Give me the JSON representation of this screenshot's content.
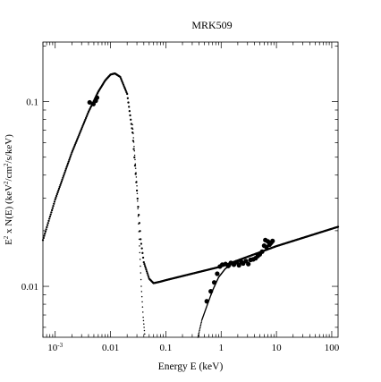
{
  "chart_data": {
    "type": "scatter",
    "title": "MRK509",
    "xlabel": "Energy E (keV)",
    "ylabel_parts": {
      "e": "E",
      "two": "2",
      "rest": " x N(E) (keV",
      "two_b": "2",
      "rest2": "/cm",
      "two_c": "2",
      "rest3": "/s/keV)"
    },
    "x_scale": "log",
    "y_scale": "log",
    "xlim": [
      0.0006,
      130
    ],
    "ylim": [
      0.0053,
      0.21
    ],
    "x_ticks": [
      {
        "value": 0.001,
        "base": "10",
        "exp": "-3"
      },
      {
        "value": 0.01,
        "label": "0.01"
      },
      {
        "value": 0.1,
        "label": "0.1"
      },
      {
        "value": 1,
        "label": "1"
      },
      {
        "value": 10,
        "label": "10"
      },
      {
        "value": 100,
        "label": "100"
      }
    ],
    "y_ticks": [
      {
        "value": 0.01,
        "label": "0.01"
      },
      {
        "value": 0.1,
        "label": "0.1"
      }
    ],
    "grid": false,
    "series": [
      {
        "style": "line",
        "points": [
          [
            0.0006,
            0.0178
          ],
          [
            0.001,
            0.0295
          ],
          [
            0.002,
            0.053
          ],
          [
            0.004,
            0.088
          ],
          [
            0.006,
            0.113
          ],
          [
            0.008,
            0.13
          ],
          [
            0.01,
            0.14
          ],
          [
            0.012,
            0.142
          ],
          [
            0.015,
            0.136
          ],
          [
            0.02,
            0.11
          ],
          [
            0.025,
            0.068
          ],
          [
            0.03,
            0.033
          ],
          [
            0.035,
            0.018
          ],
          [
            0.04,
            0.0135
          ],
          [
            0.05,
            0.011
          ],
          [
            0.06,
            0.0104
          ],
          [
            0.08,
            0.0106
          ],
          [
            0.1,
            0.0108
          ],
          [
            1,
            0.0128
          ],
          [
            10,
            0.0165
          ],
          [
            130,
            0.021
          ]
        ]
      },
      {
        "style": "dotted",
        "points": [
          [
            0.025,
            0.075
          ],
          [
            0.03,
            0.035
          ],
          [
            0.033,
            0.018
          ],
          [
            0.036,
            0.01
          ],
          [
            0.039,
            0.0068
          ],
          [
            0.042,
            0.0053
          ]
        ]
      },
      {
        "style": "dotted",
        "points": [
          [
            0.38,
            0.0053
          ],
          [
            0.45,
            0.0066
          ],
          [
            0.55,
            0.0078
          ],
          [
            0.7,
            0.0095
          ],
          [
            0.9,
            0.0112
          ],
          [
            1.2,
            0.0125
          ],
          [
            1.5,
            0.013
          ]
        ]
      },
      {
        "style": "points",
        "points": [
          [
            0.0042,
            0.099
          ],
          [
            0.0049,
            0.097
          ],
          [
            0.0054,
            0.101
          ],
          [
            0.0057,
            0.105
          ]
        ]
      },
      {
        "style": "points",
        "points": [
          [
            0.55,
            0.0083
          ],
          [
            0.65,
            0.0094
          ],
          [
            0.75,
            0.0105
          ],
          [
            0.85,
            0.0117
          ],
          [
            0.95,
            0.0128
          ],
          [
            1.05,
            0.0131
          ],
          [
            1.2,
            0.0132
          ],
          [
            1.35,
            0.0129
          ],
          [
            1.5,
            0.0134
          ],
          [
            1.7,
            0.0131
          ],
          [
            1.9,
            0.0135
          ],
          [
            2.1,
            0.013
          ],
          [
            2.3,
            0.0136
          ],
          [
            2.5,
            0.0133
          ],
          [
            2.8,
            0.0137
          ],
          [
            3.1,
            0.0132
          ],
          [
            3.4,
            0.0139
          ],
          [
            3.8,
            0.014
          ],
          [
            4.2,
            0.0142
          ],
          [
            4.6,
            0.0146
          ],
          [
            5.0,
            0.0149
          ],
          [
            5.5,
            0.0154
          ],
          [
            6.0,
            0.0166
          ],
          [
            6.3,
            0.0178
          ],
          [
            6.6,
            0.0163
          ],
          [
            7.0,
            0.0175
          ],
          [
            7.5,
            0.0168
          ],
          [
            8.0,
            0.0172
          ],
          [
            8.5,
            0.0176
          ]
        ]
      }
    ]
  }
}
